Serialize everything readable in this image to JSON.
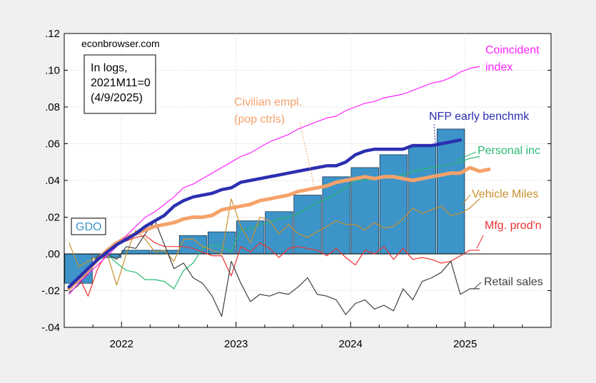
{
  "chart_data": {
    "type": "line",
    "source": "econbrowser.com",
    "note_lines": [
      "In logs,",
      "2021M11=0",
      "(4/9/2025)"
    ],
    "xlim": [
      2021.5,
      2025.75
    ],
    "ylim": [
      -0.04,
      0.12
    ],
    "x_ticks": [
      {
        "value": 2022.0,
        "label": "2022"
      },
      {
        "value": 2023.0,
        "label": "2023"
      },
      {
        "value": 2024.0,
        "label": "2024"
      },
      {
        "value": 2025.0,
        "label": "2025"
      }
    ],
    "y_ticks": [
      {
        "value": 0.12,
        "label": ".12"
      },
      {
        "value": 0.1,
        "label": ".10"
      },
      {
        "value": 0.08,
        "label": ".08"
      },
      {
        "value": 0.06,
        "label": ".06"
      },
      {
        "value": 0.04,
        "label": ".04"
      },
      {
        "value": 0.02,
        "label": ".02"
      },
      {
        "value": 0.0,
        "label": ".00"
      },
      {
        "value": -0.02,
        "label": "-.02"
      },
      {
        "value": -0.04,
        "label": "-.04"
      }
    ],
    "bars": {
      "name": "GDO",
      "color": "#3d94c8",
      "width": 0.24,
      "data": [
        {
          "x": 2021.625,
          "y": -0.016
        },
        {
          "x": 2021.875,
          "y": -0.002
        },
        {
          "x": 2022.125,
          "y": 0.002
        },
        {
          "x": 2022.375,
          "y": 0.002
        },
        {
          "x": 2022.625,
          "y": 0.01
        },
        {
          "x": 2022.875,
          "y": 0.012
        },
        {
          "x": 2023.125,
          "y": 0.018
        },
        {
          "x": 2023.375,
          "y": 0.023
        },
        {
          "x": 2023.625,
          "y": 0.032
        },
        {
          "x": 2023.875,
          "y": 0.042
        },
        {
          "x": 2024.125,
          "y": 0.047
        },
        {
          "x": 2024.375,
          "y": 0.054
        },
        {
          "x": 2024.625,
          "y": 0.059
        },
        {
          "x": 2024.875,
          "y": 0.068
        }
      ]
    },
    "series": [
      {
        "name": "Coincident index",
        "label_lines": [
          "Coincident",
          "index"
        ],
        "color": "#ff22ff",
        "width": 1.2,
        "x": [
          2021.542,
          2021.625,
          2021.708,
          2021.792,
          2021.875,
          2021.958,
          2022.042,
          2022.125,
          2022.208,
          2022.292,
          2022.375,
          2022.458,
          2022.542,
          2022.625,
          2022.708,
          2022.792,
          2022.875,
          2022.958,
          2023.042,
          2023.125,
          2023.208,
          2023.292,
          2023.375,
          2023.458,
          2023.542,
          2023.625,
          2023.708,
          2023.792,
          2023.875,
          2023.958,
          2024.042,
          2024.125,
          2024.208,
          2024.292,
          2024.375,
          2024.458,
          2024.542,
          2024.625,
          2024.708,
          2024.792,
          2024.875,
          2024.958,
          2025.042,
          2025.125
        ],
        "y": [
          -0.022,
          -0.016,
          -0.011,
          -0.006,
          -0.001,
          0.004,
          0.01,
          0.015,
          0.02,
          0.023,
          0.027,
          0.031,
          0.036,
          0.038,
          0.041,
          0.044,
          0.047,
          0.05,
          0.053,
          0.055,
          0.058,
          0.061,
          0.063,
          0.065,
          0.068,
          0.07,
          0.072,
          0.074,
          0.075,
          0.078,
          0.08,
          0.082,
          0.083,
          0.085,
          0.086,
          0.087,
          0.089,
          0.091,
          0.093,
          0.094,
          0.096,
          0.099,
          0.101,
          0.102
        ]
      },
      {
        "name": "NFP early benchmk",
        "label_lines": [
          "NFP early benchmk"
        ],
        "color": "#2b2fb0",
        "width": 4.5,
        "x": [
          2021.542,
          2021.625,
          2021.708,
          2021.792,
          2021.875,
          2021.958,
          2022.042,
          2022.125,
          2022.208,
          2022.292,
          2022.375,
          2022.458,
          2022.542,
          2022.625,
          2022.708,
          2022.792,
          2022.875,
          2022.958,
          2023.042,
          2023.125,
          2023.208,
          2023.292,
          2023.375,
          2023.458,
          2023.542,
          2023.625,
          2023.708,
          2023.792,
          2023.875,
          2023.958,
          2024.042,
          2024.125,
          2024.208,
          2024.292,
          2024.375,
          2024.458,
          2024.542,
          2024.625,
          2024.708,
          2024.792,
          2024.875,
          2024.958
        ],
        "y": [
          -0.018,
          -0.013,
          -0.008,
          -0.003,
          0.001,
          0.005,
          0.008,
          0.011,
          0.015,
          0.018,
          0.021,
          0.026,
          0.029,
          0.031,
          0.032,
          0.033,
          0.035,
          0.036,
          0.039,
          0.04,
          0.041,
          0.042,
          0.043,
          0.044,
          0.045,
          0.046,
          0.047,
          0.048,
          0.048,
          0.05,
          0.054,
          0.056,
          0.057,
          0.057,
          0.057,
          0.057,
          0.059,
          0.059,
          0.059,
          0.06,
          0.061,
          0.062
        ]
      },
      {
        "name": "Civilian empl. (pop ctrls)",
        "label_lines": [
          "Civilian empl.",
          "(pop ctrls)"
        ],
        "color": "#f5a26a",
        "width": 5,
        "x": [
          2021.542,
          2021.625,
          2021.708,
          2021.792,
          2021.875,
          2021.958,
          2022.042,
          2022.125,
          2022.208,
          2022.292,
          2022.375,
          2022.458,
          2022.542,
          2022.625,
          2022.708,
          2022.792,
          2022.875,
          2022.958,
          2023.042,
          2023.125,
          2023.208,
          2023.292,
          2023.375,
          2023.458,
          2023.542,
          2023.625,
          2023.708,
          2023.792,
          2023.875,
          2023.958,
          2024.042,
          2024.125,
          2024.208,
          2024.292,
          2024.375,
          2024.458,
          2024.542,
          2024.625,
          2024.708,
          2024.792,
          2024.875,
          2024.958,
          2025.042,
          2025.125,
          2025.208
        ],
        "y": [
          -0.019,
          -0.014,
          -0.009,
          -0.003,
          0.002,
          0.006,
          0.009,
          0.011,
          0.013,
          0.015,
          0.016,
          0.017,
          0.019,
          0.02,
          0.02,
          0.021,
          0.024,
          0.025,
          0.026,
          0.027,
          0.029,
          0.03,
          0.031,
          0.032,
          0.034,
          0.035,
          0.036,
          0.037,
          0.039,
          0.04,
          0.041,
          0.042,
          0.041,
          0.042,
          0.042,
          0.041,
          0.04,
          0.041,
          0.042,
          0.043,
          0.044,
          0.044,
          0.047,
          0.045,
          0.046
        ]
      },
      {
        "name": "Personal inc",
        "label_lines": [
          "Personal inc"
        ],
        "color": "#2ab873",
        "width": 1.2,
        "x": [
          2021.542,
          2021.625,
          2021.708,
          2021.792,
          2021.875,
          2021.958,
          2022.042,
          2022.125,
          2022.208,
          2022.292,
          2022.375,
          2022.458,
          2022.542,
          2022.625,
          2022.708,
          2022.792,
          2022.875,
          2022.958,
          2023.042,
          2023.125,
          2023.208,
          2023.292,
          2023.375,
          2023.458,
          2023.542,
          2023.625,
          2023.708,
          2023.792,
          2023.875,
          2023.958,
          2024.042,
          2024.125,
          2024.208,
          2024.292,
          2024.375,
          2024.458,
          2024.542,
          2024.625,
          2024.708,
          2024.792,
          2024.875,
          2024.958,
          2025.042,
          2025.125
        ],
        "y": [
          -0.02,
          -0.014,
          -0.008,
          -0.004,
          0.0,
          -0.005,
          -0.009,
          -0.01,
          -0.014,
          -0.014,
          -0.015,
          -0.019,
          -0.009,
          -0.005,
          0.003,
          0.005,
          0.004,
          0.001,
          0.013,
          0.014,
          0.016,
          0.017,
          0.019,
          0.02,
          0.022,
          0.025,
          0.028,
          0.03,
          0.033,
          0.036,
          0.04,
          0.04,
          0.041,
          0.042,
          0.042,
          0.043,
          0.045,
          0.046,
          0.047,
          0.048,
          0.049,
          0.05,
          0.052,
          0.053
        ]
      },
      {
        "name": "Vehicle Miles",
        "label_lines": [
          "Vehicle Miles"
        ],
        "color": "#c8902c",
        "width": 1.2,
        "x": [
          2021.542,
          2021.625,
          2021.708,
          2021.792,
          2021.875,
          2021.958,
          2022.042,
          2022.125,
          2022.208,
          2022.292,
          2022.375,
          2022.458,
          2022.542,
          2022.625,
          2022.708,
          2022.792,
          2022.875,
          2022.958,
          2023.042,
          2023.125,
          2023.208,
          2023.292,
          2023.375,
          2023.458,
          2023.542,
          2023.625,
          2023.708,
          2023.792,
          2023.875,
          2023.958,
          2024.042,
          2024.125,
          2024.208,
          2024.292,
          2024.375,
          2024.458,
          2024.542,
          2024.625,
          2024.708,
          2024.792,
          2024.875,
          2024.958,
          2025.042,
          2025.125
        ],
        "y": [
          0.006,
          -0.007,
          -0.004,
          -0.002,
          0.0,
          -0.017,
          0.0,
          0.013,
          0.008,
          0.001,
          0.002,
          -0.004,
          0.008,
          0.008,
          0.004,
          0.002,
          0.0,
          0.03,
          0.015,
          0.006,
          0.02,
          0.018,
          0.011,
          0.016,
          0.011,
          0.009,
          0.012,
          0.015,
          0.018,
          0.016,
          0.016,
          0.013,
          0.017,
          0.014,
          0.015,
          0.019,
          0.025,
          0.022,
          0.024,
          0.026,
          0.021,
          0.022,
          0.025,
          0.03
        ]
      },
      {
        "name": "Mfg. prod'n",
        "label_lines": [
          "Mfg. prod'n"
        ],
        "color": "#ee3030",
        "width": 1.2,
        "x": [
          2021.542,
          2021.625,
          2021.708,
          2021.792,
          2021.875,
          2021.958,
          2022.042,
          2022.125,
          2022.208,
          2022.292,
          2022.375,
          2022.458,
          2022.542,
          2022.625,
          2022.708,
          2022.792,
          2022.875,
          2022.958,
          2023.042,
          2023.125,
          2023.208,
          2023.292,
          2023.375,
          2023.458,
          2023.542,
          2023.625,
          2023.708,
          2023.792,
          2023.875,
          2023.958,
          2024.042,
          2024.125,
          2024.208,
          2024.292,
          2024.375,
          2024.458,
          2024.542,
          2024.625,
          2024.708,
          2024.792,
          2024.875,
          2024.958,
          2025.042,
          2025.125
        ],
        "y": [
          -0.019,
          -0.012,
          -0.023,
          -0.008,
          0.001,
          0.006,
          0.007,
          0.009,
          0.01,
          0.006,
          0.004,
          0.004,
          0.004,
          0.003,
          0.001,
          -0.001,
          -0.001,
          -0.012,
          0.004,
          0.001,
          0.006,
          0.003,
          -0.002,
          0.003,
          0.004,
          0.003,
          0.002,
          -0.001,
          0.003,
          -0.002,
          -0.006,
          0.002,
          0.0,
          0.004,
          -0.003,
          0.003,
          -0.003,
          -0.002,
          -0.003,
          -0.005,
          -0.004,
          -0.001,
          0.002,
          0.002
        ]
      },
      {
        "name": "Retail sales",
        "label_lines": [
          "Retail sales"
        ],
        "color": "#404040",
        "width": 1.2,
        "x": [
          2021.542,
          2021.625,
          2021.708,
          2021.792,
          2021.875,
          2021.958,
          2022.042,
          2022.125,
          2022.208,
          2022.292,
          2022.375,
          2022.458,
          2022.542,
          2022.625,
          2022.708,
          2022.792,
          2022.875,
          2022.958,
          2023.042,
          2023.125,
          2023.208,
          2023.292,
          2023.375,
          2023.458,
          2023.542,
          2023.625,
          2023.708,
          2023.792,
          2023.875,
          2023.958,
          2024.042,
          2024.125,
          2024.208,
          2024.292,
          2024.375,
          2024.458,
          2024.542,
          2024.625,
          2024.708,
          2024.792,
          2024.875,
          2024.958,
          2025.042,
          2025.125
        ],
        "y": [
          -0.021,
          -0.017,
          -0.01,
          -0.001,
          0.0,
          -0.003,
          0.004,
          0.003,
          0.011,
          0.018,
          0.005,
          -0.008,
          -0.005,
          -0.013,
          -0.016,
          -0.023,
          -0.034,
          -0.004,
          -0.016,
          -0.026,
          -0.022,
          -0.023,
          -0.021,
          -0.022,
          -0.018,
          -0.013,
          -0.022,
          -0.023,
          -0.025,
          -0.033,
          -0.027,
          -0.025,
          -0.03,
          -0.028,
          -0.031,
          -0.019,
          -0.025,
          -0.015,
          -0.013,
          -0.01,
          -0.004,
          -0.022,
          -0.019,
          -0.019
        ]
      }
    ]
  }
}
